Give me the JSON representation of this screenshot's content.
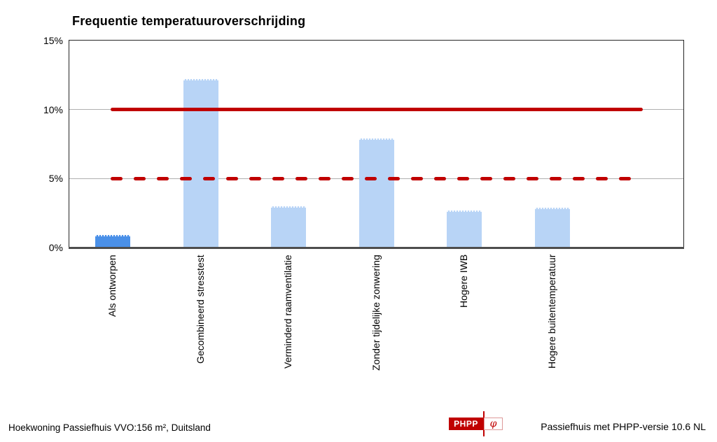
{
  "title": "Frequentie temperatuuroverschrijding",
  "footer": {
    "left": "Hoekwoning Passiefhuis VVO:156 m², Duitsland",
    "right": "Passiefhuis met PHPP-versie 10.6 NL"
  },
  "logo": {
    "text": "PHPP",
    "symbol": "φ",
    "red": "#c00000"
  },
  "chart_data": {
    "type": "bar",
    "title": "Frequentie temperatuuroverschrijding",
    "categories": [
      "Als ontworpen",
      "Gecombineerd stresstest",
      "Verminderd raamventilatie",
      "Zonder tijdelijke zonwering",
      "Hogere IWB",
      "Hogere buitentemperatuur"
    ],
    "values": [
      0.9,
      12.2,
      3.0,
      7.9,
      2.7,
      2.9
    ],
    "highlight_index": 0,
    "ylim": [
      0,
      15
    ],
    "yticks": [
      {
        "value": 0,
        "label": "0%"
      },
      {
        "value": 5,
        "label": "5%"
      },
      {
        "value": 10,
        "label": "10%"
      },
      {
        "value": 15,
        "label": "15%"
      }
    ],
    "reference_lines": [
      {
        "value": 10,
        "style": "solid",
        "color": "#c00000"
      },
      {
        "value": 5,
        "style": "dashed",
        "color": "#c00000"
      }
    ],
    "grid": true,
    "legend": "none",
    "xlabel": "",
    "ylabel": "",
    "colors": {
      "bar_default": "#b8d4f6",
      "bar_highlight": "#4a90e8",
      "gridline": "#b0b0b0",
      "plot_border": "#262626",
      "axis_bottom": "#4d4d4d"
    }
  }
}
